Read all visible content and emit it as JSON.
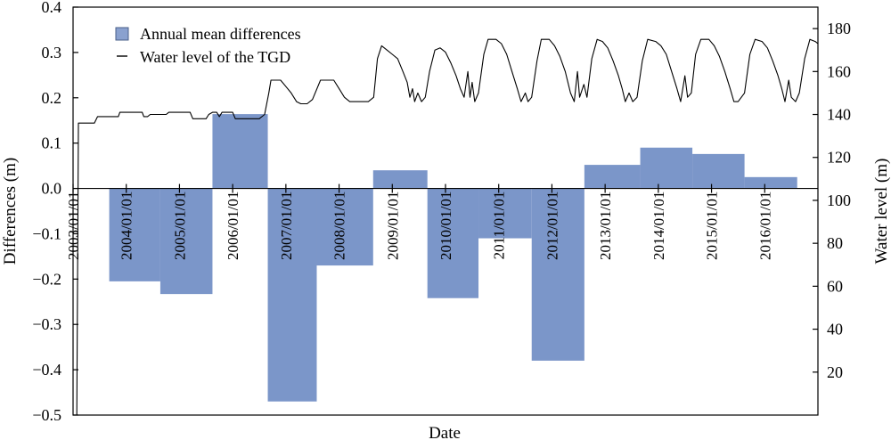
{
  "chart_data": {
    "type": "bar+line",
    "xlabel": "Date",
    "ylabel_left": "Differences (m)",
    "ylabel_right": "Water level (m)",
    "ylim_left": [
      -0.5,
      0.4
    ],
    "ylim_right": [
      0,
      190
    ],
    "left_ticks": [
      "0.4",
      "0.3",
      "0.2",
      "0.1",
      "0.0",
      "−0.1",
      "−0.2",
      "−0.3",
      "−0.4",
      "−0.5"
    ],
    "left_tick_values": [
      0.4,
      0.3,
      0.2,
      0.1,
      0.0,
      -0.1,
      -0.2,
      -0.3,
      -0.4,
      -0.5
    ],
    "right_ticks": [
      "180",
      "160",
      "140",
      "120",
      "100",
      "80",
      "60",
      "40",
      "20"
    ],
    "right_tick_values": [
      180,
      160,
      140,
      120,
      100,
      80,
      60,
      40,
      20
    ],
    "x_domain": [
      2003.0,
      2017.0
    ],
    "date_ticks": [
      "2003/01/01",
      "2004/01/01",
      "2005/01/01",
      "2006/01/01",
      "2007/01/01",
      "2008/01/01",
      "2009/01/01",
      "2010/01/01",
      "2011/01/01",
      "2012/01/01",
      "2013/01/01",
      "2014/01/01",
      "2015/01/01",
      "2016/01/01"
    ],
    "date_tick_values": [
      2003.0,
      2004.0,
      2005.0,
      2006.0,
      2007.0,
      2008.0,
      2009.0,
      2010.0,
      2011.0,
      2012.0,
      2013.0,
      2014.0,
      2015.0,
      2016.0
    ],
    "legend_position": "top-left",
    "legend": {
      "bars": "Annual mean differences",
      "line": "Water level of the TGD"
    },
    "bar_color": "#7b96c9",
    "line_color": "#000000",
    "bars": [
      {
        "start": 2003.68,
        "end": 2004.64,
        "value": -0.205
      },
      {
        "start": 2004.64,
        "end": 2005.62,
        "value": -0.233
      },
      {
        "start": 2005.62,
        "end": 2006.66,
        "value": 0.164
      },
      {
        "start": 2006.66,
        "end": 2007.58,
        "value": -0.47
      },
      {
        "start": 2007.58,
        "end": 2008.64,
        "value": -0.17
      },
      {
        "start": 2008.64,
        "end": 2009.66,
        "value": 0.04
      },
      {
        "start": 2009.66,
        "end": 2010.62,
        "value": -0.242
      },
      {
        "start": 2010.62,
        "end": 2011.62,
        "value": -0.11
      },
      {
        "start": 2011.62,
        "end": 2012.61,
        "value": -0.38
      },
      {
        "start": 2012.61,
        "end": 2013.66,
        "value": 0.052
      },
      {
        "start": 2013.66,
        "end": 2014.64,
        "value": 0.09
      },
      {
        "start": 2014.64,
        "end": 2015.62,
        "value": 0.076
      },
      {
        "start": 2015.62,
        "end": 2016.61,
        "value": 0.025
      }
    ],
    "water_level_series": [
      [
        2003.0,
        0
      ],
      [
        2003.07,
        0
      ],
      [
        2003.1,
        136
      ],
      [
        2003.4,
        136
      ],
      [
        2003.46,
        139
      ],
      [
        2003.85,
        139
      ],
      [
        2003.88,
        141
      ],
      [
        2004.3,
        141
      ],
      [
        2004.33,
        139
      ],
      [
        2004.4,
        139
      ],
      [
        2004.45,
        140
      ],
      [
        2004.75,
        140
      ],
      [
        2004.8,
        141
      ],
      [
        2005.2,
        141
      ],
      [
        2005.25,
        138
      ],
      [
        2005.5,
        138
      ],
      [
        2005.55,
        140
      ],
      [
        2005.62,
        141
      ],
      [
        2005.7,
        141
      ],
      [
        2005.75,
        139
      ],
      [
        2005.8,
        141
      ],
      [
        2006.0,
        141
      ],
      [
        2006.05,
        138
      ],
      [
        2006.3,
        138
      ],
      [
        2006.5,
        138
      ],
      [
        2006.6,
        140
      ],
      [
        2006.68,
        150
      ],
      [
        2006.72,
        156
      ],
      [
        2006.9,
        156
      ],
      [
        2007.0,
        153
      ],
      [
        2007.1,
        150
      ],
      [
        2007.2,
        146
      ],
      [
        2007.28,
        145
      ],
      [
        2007.4,
        145
      ],
      [
        2007.5,
        147
      ],
      [
        2007.65,
        156
      ],
      [
        2007.75,
        156
      ],
      [
        2007.9,
        156
      ],
      [
        2008.0,
        152
      ],
      [
        2008.1,
        148
      ],
      [
        2008.2,
        146
      ],
      [
        2008.3,
        146
      ],
      [
        2008.55,
        146
      ],
      [
        2008.65,
        148
      ],
      [
        2008.72,
        166
      ],
      [
        2008.8,
        172
      ],
      [
        2008.9,
        170
      ],
      [
        2009.0,
        168
      ],
      [
        2009.1,
        166
      ],
      [
        2009.2,
        160
      ],
      [
        2009.28,
        155
      ],
      [
        2009.33,
        148
      ],
      [
        2009.38,
        152
      ],
      [
        2009.42,
        146
      ],
      [
        2009.48,
        150
      ],
      [
        2009.55,
        146
      ],
      [
        2009.62,
        148
      ],
      [
        2009.7,
        160
      ],
      [
        2009.8,
        170
      ],
      [
        2009.9,
        171
      ],
      [
        2010.0,
        169
      ],
      [
        2010.1,
        164
      ],
      [
        2010.2,
        158
      ],
      [
        2010.28,
        152
      ],
      [
        2010.35,
        148
      ],
      [
        2010.42,
        160
      ],
      [
        2010.46,
        148
      ],
      [
        2010.5,
        155
      ],
      [
        2010.55,
        146
      ],
      [
        2010.62,
        150
      ],
      [
        2010.72,
        168
      ],
      [
        2010.8,
        175
      ],
      [
        2010.95,
        175
      ],
      [
        2011.05,
        173
      ],
      [
        2011.15,
        168
      ],
      [
        2011.25,
        160
      ],
      [
        2011.35,
        152
      ],
      [
        2011.42,
        146
      ],
      [
        2011.5,
        150
      ],
      [
        2011.55,
        146
      ],
      [
        2011.62,
        148
      ],
      [
        2011.72,
        165
      ],
      [
        2011.8,
        175
      ],
      [
        2011.95,
        175
      ],
      [
        2012.05,
        172
      ],
      [
        2012.15,
        167
      ],
      [
        2012.25,
        160
      ],
      [
        2012.35,
        150
      ],
      [
        2012.42,
        146
      ],
      [
        2012.48,
        160
      ],
      [
        2012.52,
        148
      ],
      [
        2012.6,
        154
      ],
      [
        2012.66,
        148
      ],
      [
        2012.75,
        166
      ],
      [
        2012.85,
        175
      ],
      [
        2012.95,
        174
      ],
      [
        2013.05,
        171
      ],
      [
        2013.15,
        165
      ],
      [
        2013.25,
        158
      ],
      [
        2013.32,
        152
      ],
      [
        2013.38,
        146
      ],
      [
        2013.45,
        150
      ],
      [
        2013.52,
        146
      ],
      [
        2013.6,
        148
      ],
      [
        2013.7,
        165
      ],
      [
        2013.8,
        175
      ],
      [
        2013.95,
        174
      ],
      [
        2014.05,
        172
      ],
      [
        2014.15,
        168
      ],
      [
        2014.25,
        160
      ],
      [
        2014.35,
        152
      ],
      [
        2014.42,
        146
      ],
      [
        2014.5,
        158
      ],
      [
        2014.55,
        148
      ],
      [
        2014.62,
        150
      ],
      [
        2014.7,
        168
      ],
      [
        2014.8,
        175
      ],
      [
        2014.95,
        175
      ],
      [
        2015.05,
        172
      ],
      [
        2015.15,
        167
      ],
      [
        2015.25,
        160
      ],
      [
        2015.35,
        152
      ],
      [
        2015.42,
        146
      ],
      [
        2015.5,
        146
      ],
      [
        2015.62,
        150
      ],
      [
        2015.72,
        168
      ],
      [
        2015.82,
        175
      ],
      [
        2015.95,
        174
      ],
      [
        2016.05,
        171
      ],
      [
        2016.15,
        165
      ],
      [
        2016.25,
        158
      ],
      [
        2016.32,
        152
      ],
      [
        2016.38,
        146
      ],
      [
        2016.45,
        156
      ],
      [
        2016.5,
        148
      ],
      [
        2016.58,
        146
      ],
      [
        2016.65,
        150
      ],
      [
        2016.75,
        166
      ],
      [
        2016.85,
        175
      ],
      [
        2016.95,
        174
      ],
      [
        2017.0,
        173
      ]
    ]
  }
}
